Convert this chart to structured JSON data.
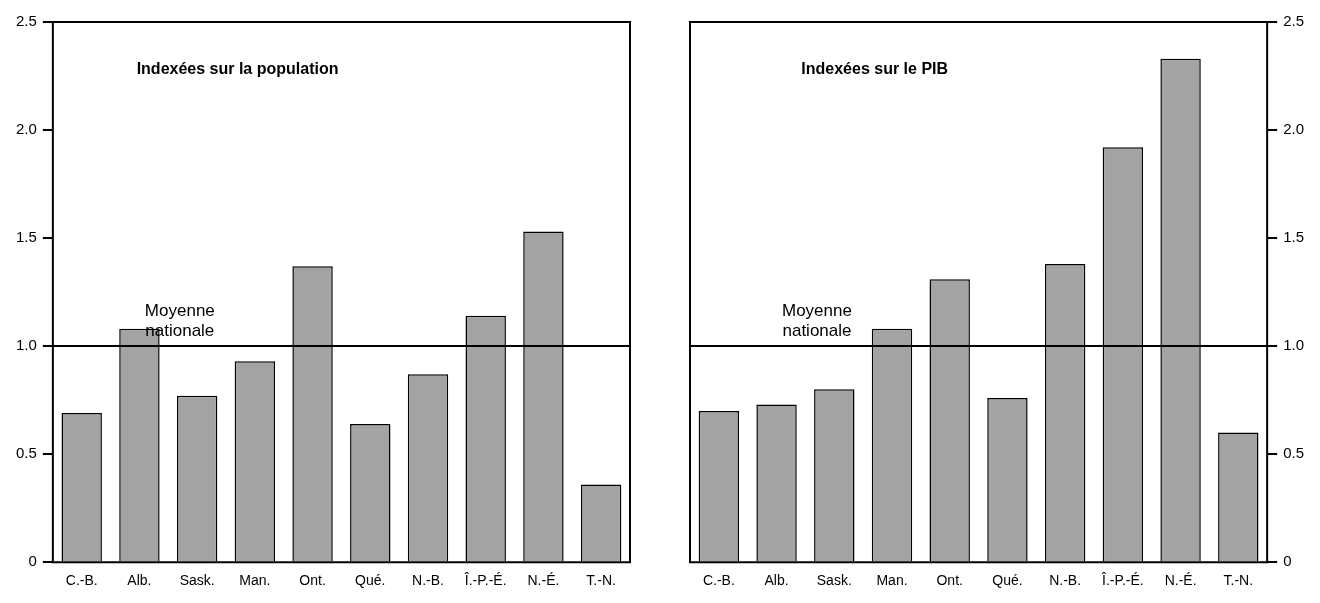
{
  "chart_data": [
    {
      "type": "bar",
      "title": "Indexées sur la population",
      "categories": [
        "C.-B.",
        "Alb.",
        "Sask.",
        "Man.",
        "Ont.",
        "Qué.",
        "N.-B.",
        "Î.-P.-É.",
        "N.-É.",
        "T.-N."
      ],
      "series": [
        {
          "color": "#a3a3a3",
          "values": [
            0.69,
            1.08,
            0.77,
            0.93,
            1.37,
            0.64,
            0.87,
            1.14,
            1.53,
            0.36
          ]
        }
      ],
      "ylim": [
        0,
        2.5
      ],
      "yticks": [
        0,
        0.5,
        {
          "value": 1,
          "label": "1.0"
        },
        {
          "value": 1.5,
          "label": "1.5"
        },
        {
          "value": 2,
          "label": "2.0"
        },
        {
          "value": 2.5,
          "label": "2.5"
        }
      ],
      "ref_lines": [
        {
          "axis": "y",
          "value": 1,
          "label": "Moyenne nationale",
          "color": "#000000"
        }
      ],
      "legend": false
    },
    {
      "type": "bar",
      "title": "Indexées sur le PIB",
      "categories": [
        "C.-B.",
        "Alb.",
        "Sask.",
        "Man.",
        "Ont.",
        "Qué.",
        "N.-B.",
        "Î.-P.-É.",
        "N.-É.",
        "T.-N."
      ],
      "series": [
        {
          "color": "#a3a3a3",
          "axis": "y2",
          "values": [
            0.7,
            0.73,
            0.8,
            1.08,
            1.31,
            0.76,
            1.38,
            1.92,
            2.33,
            0.6
          ]
        }
      ],
      "y2lim": [
        0,
        2.5
      ],
      "y2ticks": [
        0,
        0.5,
        {
          "value": 1,
          "label": "1.0"
        },
        {
          "value": 1.5,
          "label": "1.5"
        },
        {
          "value": 2,
          "label": "2.0"
        },
        {
          "value": 2.5,
          "label": "2.5"
        }
      ],
      "ref_lines": [
        {
          "axis": "y2",
          "value": 1,
          "label": "Moyenne nationale",
          "color": "#000000"
        }
      ],
      "legend": false
    }
  ]
}
